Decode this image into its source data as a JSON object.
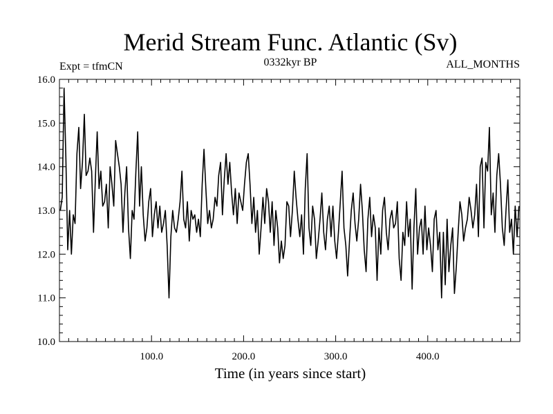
{
  "chart_data": {
    "type": "line",
    "title": "Merid Stream Func. Atlantic (Sv)",
    "annotation_left": "Expt = tfmCN",
    "annotation_center": "0332kyr BP",
    "annotation_right": "ALL_MONTHS",
    "xlabel": "Time (in years since start)",
    "ylabel": "",
    "xlim": [
      0,
      500
    ],
    "ylim": [
      10.0,
      16.0
    ],
    "x_ticks": [
      100,
      200,
      300,
      400
    ],
    "x_tick_labels": [
      "100.0",
      "200.0",
      "300.0",
      "400.0"
    ],
    "y_ticks": [
      10,
      11,
      12,
      13,
      14,
      15,
      16
    ],
    "y_tick_labels": [
      "10.0",
      "11.0",
      "12.0",
      "13.0",
      "14.0",
      "15.0",
      "16.0"
    ],
    "grid": false,
    "legend": "none",
    "line_color": "#000000",
    "series": [
      {
        "x_start": 1,
        "x_step": 2,
        "values": [
          13.0,
          13.3,
          15.8,
          14.2,
          12.1,
          13.0,
          12.0,
          12.9,
          12.7,
          14.3,
          14.9,
          13.5,
          14.1,
          15.2,
          13.8,
          13.9,
          14.2,
          13.9,
          12.5,
          13.7,
          14.8,
          13.5,
          13.9,
          13.1,
          13.2,
          13.6,
          12.6,
          14.0,
          13.6,
          13.1,
          14.6,
          14.3,
          14.0,
          13.6,
          12.5,
          13.4,
          14.0,
          12.6,
          11.9,
          13.0,
          12.8,
          13.9,
          14.8,
          13.1,
          14.0,
          12.9,
          12.3,
          12.6,
          13.2,
          13.5,
          12.4,
          12.9,
          13.2,
          12.6,
          13.1,
          12.5,
          12.7,
          13.0,
          12.2,
          11.0,
          12.4,
          13.0,
          12.6,
          12.5,
          12.8,
          13.2,
          13.9,
          12.8,
          12.6,
          13.2,
          12.3,
          13.0,
          12.8,
          12.9,
          12.5,
          12.8,
          12.4,
          13.6,
          14.4,
          13.5,
          12.7,
          13.0,
          12.6,
          12.8,
          13.3,
          13.1,
          13.8,
          14.1,
          12.9,
          13.7,
          14.3,
          13.6,
          14.1,
          13.4,
          12.9,
          13.5,
          12.7,
          13.4,
          13.2,
          13.0,
          13.6,
          14.1,
          14.3,
          13.6,
          12.7,
          13.3,
          12.5,
          13.0,
          12.0,
          12.6,
          13.3,
          12.7,
          13.5,
          13.2,
          12.5,
          13.2,
          12.2,
          13.0,
          12.6,
          11.8,
          12.3,
          11.9,
          12.2,
          13.2,
          13.1,
          12.4,
          13.0,
          13.9,
          13.3,
          12.8,
          12.4,
          12.9,
          12.0,
          13.5,
          14.3,
          12.6,
          12.2,
          13.1,
          12.8,
          11.9,
          12.3,
          12.8,
          13.4,
          12.5,
          12.1,
          12.8,
          13.1,
          12.4,
          13.1,
          12.3,
          11.9,
          12.5,
          13.2,
          13.9,
          12.6,
          12.2,
          11.5,
          12.3,
          13.0,
          13.4,
          12.7,
          12.3,
          12.8,
          13.6,
          13.0,
          12.1,
          11.6,
          12.8,
          13.3,
          12.4,
          12.9,
          12.6,
          11.4,
          12.6,
          12.0,
          13.0,
          13.3,
          12.5,
          12.1,
          12.8,
          13.0,
          12.6,
          12.7,
          13.2,
          11.9,
          11.4,
          12.5,
          12.2,
          13.2,
          12.4,
          12.8,
          11.2,
          12.6,
          13.5,
          12.0,
          12.6,
          12.8,
          12.0,
          13.1,
          12.1,
          12.6,
          12.2,
          11.6,
          12.8,
          13.0,
          12.1,
          12.5,
          11.0,
          12.5,
          11.3,
          12.8,
          11.6,
          12.2,
          12.6,
          11.1,
          11.7,
          12.5,
          13.2,
          12.9,
          12.3,
          12.6,
          12.8,
          13.3,
          13.0,
          12.6,
          12.9,
          13.6,
          12.4,
          14.0,
          14.2,
          12.6,
          14.1,
          13.9,
          14.9,
          12.9,
          13.4,
          12.5,
          13.8,
          14.3,
          13.6,
          12.6,
          12.2,
          13.0,
          13.7,
          12.5,
          12.8,
          12.0,
          13.1,
          12.4,
          13.1
        ],
        "name": ""
      }
    ]
  }
}
